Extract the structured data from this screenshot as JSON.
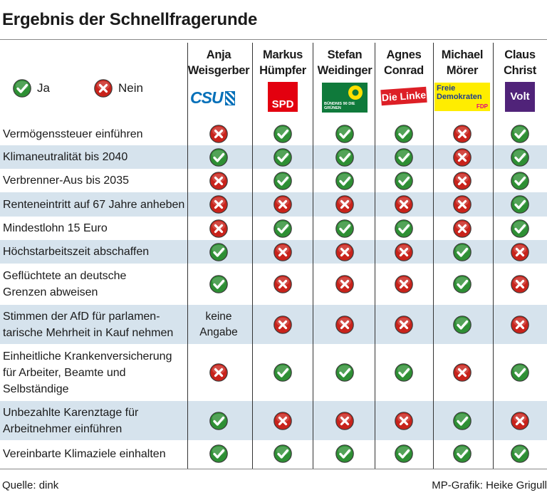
{
  "title": "Ergebnis der Schnellfragerunde",
  "legend": {
    "yes_label": "Ja",
    "no_label": "Nein"
  },
  "candidates": [
    {
      "first": "Anja",
      "last": "Weisgerber",
      "party": "CSU",
      "logo_text": "CSU"
    },
    {
      "first": "Markus",
      "last": "Hümpfer",
      "party": "SPD",
      "logo_text": "SPD"
    },
    {
      "first": "Stefan",
      "last": "Weidinger",
      "party": "Bündnis 90 / Die Grünen",
      "logo_text": "BÜNDNIS 90 DIE GRÜNEN"
    },
    {
      "first": "Agnes",
      "last": "Conrad",
      "party": "Die Linke",
      "logo_text": "Die Linke"
    },
    {
      "first": "Michael",
      "last": "Mörer",
      "party": "FDP",
      "logo_text": "Freie Demokraten",
      "logo_sub": "FDP"
    },
    {
      "first": "Claus",
      "last": "Christ",
      "party": "Volt",
      "logo_text": "Volt"
    }
  ],
  "chart_data": {
    "type": "table",
    "title": "Ergebnis der Schnellfragerunde",
    "columns": [
      "Anja Weisgerber",
      "Markus Hümpfer",
      "Stefan Weidinger",
      "Agnes Conrad",
      "Michael Mörer",
      "Claus Christ"
    ],
    "rows": [
      {
        "question": [
          "Vermögenssteuer einführen"
        ],
        "answers": [
          "no",
          "yes",
          "yes",
          "yes",
          "no",
          "yes"
        ]
      },
      {
        "question": [
          "Klimaneutralität bis 2040"
        ],
        "answers": [
          "yes",
          "yes",
          "yes",
          "yes",
          "no",
          "yes"
        ]
      },
      {
        "question": [
          "Verbrenner-Aus bis 2035"
        ],
        "answers": [
          "no",
          "yes",
          "yes",
          "yes",
          "no",
          "yes"
        ]
      },
      {
        "question": [
          "Renteneintritt auf 67 Jahre anheben"
        ],
        "answers": [
          "no",
          "no",
          "no",
          "no",
          "no",
          "yes"
        ]
      },
      {
        "question": [
          "Mindestlohn 15 Euro"
        ],
        "answers": [
          "no",
          "yes",
          "yes",
          "yes",
          "no",
          "yes"
        ]
      },
      {
        "question": [
          "Höchstarbeitszeit abschaffen"
        ],
        "answers": [
          "yes",
          "no",
          "no",
          "no",
          "yes",
          "no"
        ]
      },
      {
        "question": [
          "Geflüchtete an deutsche",
          "Grenzen abweisen"
        ],
        "answers": [
          "yes",
          "no",
          "no",
          "no",
          "yes",
          "no"
        ]
      },
      {
        "question": [
          "Stimmen der AfD für parlamen-",
          "tarische Mehrheit in Kauf nehmen"
        ],
        "answers": [
          "keine Angabe",
          "no",
          "no",
          "no",
          "yes",
          "no"
        ]
      },
      {
        "question": [
          "Einheitliche Krankenversicherung",
          "für Arbeiter, Beamte und",
          "Selbständige"
        ],
        "answers": [
          "no",
          "yes",
          "yes",
          "yes",
          "no",
          "yes"
        ]
      },
      {
        "question": [
          "Unbezahlte Karenztage für",
          "Arbeitnehmer einführen"
        ],
        "answers": [
          "yes",
          "no",
          "no",
          "no",
          "yes",
          "no"
        ]
      },
      {
        "question": [
          "Vereinbarte Klimaziele einhalten"
        ],
        "answers": [
          "yes",
          "yes",
          "yes",
          "yes",
          "yes",
          "yes"
        ]
      }
    ],
    "no_answer_text": [
      "keine",
      "Angabe"
    ]
  },
  "footer": {
    "source": "Quelle: dink",
    "credit": "MP-Grafik: Heike Grigull"
  },
  "colors": {
    "yes": "#2e8f34",
    "no": "#c8231b",
    "shade": "#d6e3ed",
    "spd": "#e3000f",
    "volt": "#502379",
    "linke": "#dd1f26",
    "fdp": "#ffed00"
  }
}
